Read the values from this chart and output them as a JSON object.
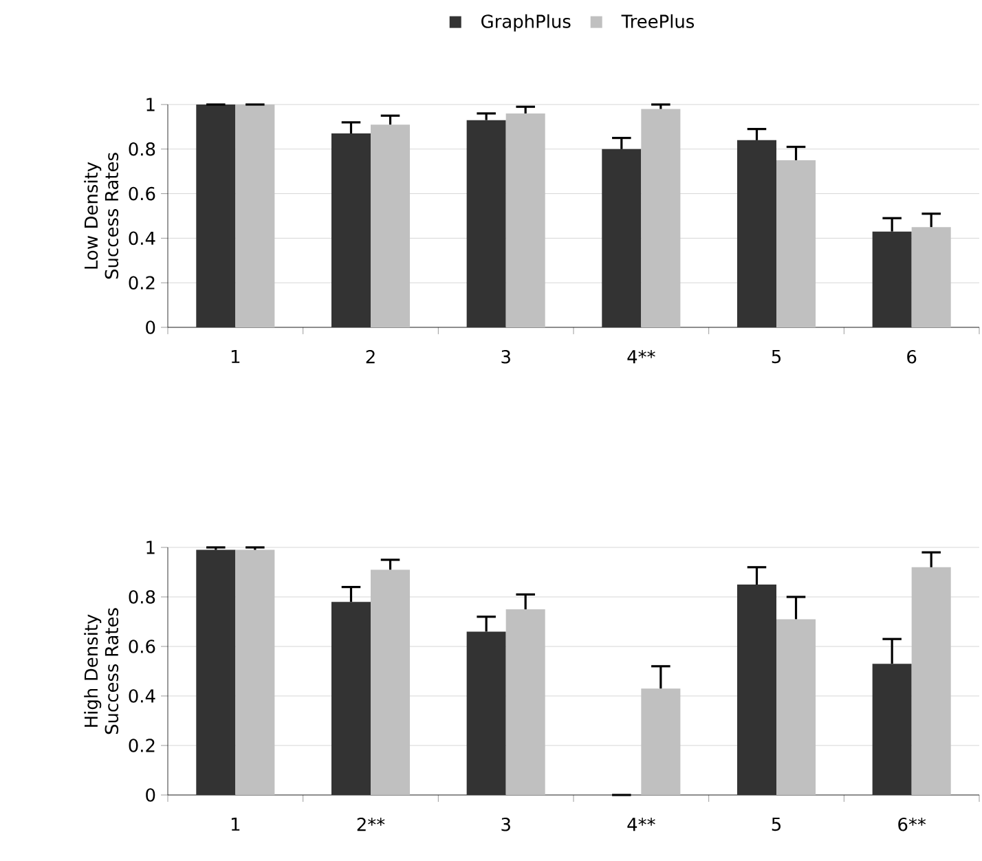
{
  "chart_data": [
    {
      "type": "bar",
      "ylabel": "Low Density Success Rates",
      "categories": [
        "1",
        "2",
        "3",
        "4**",
        "5",
        "6"
      ],
      "ylim": [
        0,
        1
      ],
      "yticks": [
        0,
        0.2,
        0.4,
        0.6,
        0.8,
        1
      ],
      "grid": "y",
      "legend": "top",
      "series": [
        {
          "name": "GraphPlus",
          "color": "#333333",
          "values": [
            1.0,
            0.87,
            0.93,
            0.8,
            0.84,
            0.43
          ],
          "errors": [
            [
              1.0,
              1.0
            ],
            [
              0.87,
              0.92
            ],
            [
              0.93,
              0.96
            ],
            [
              0.8,
              0.85
            ],
            [
              0.84,
              0.89
            ],
            [
              0.43,
              0.49
            ]
          ]
        },
        {
          "name": "TreePlus",
          "color": "#c0c0c0",
          "values": [
            1.0,
            0.91,
            0.96,
            0.98,
            0.75,
            0.45
          ],
          "errors": [
            [
              1.0,
              1.0
            ],
            [
              0.91,
              0.95
            ],
            [
              0.96,
              0.99
            ],
            [
              0.98,
              1.0
            ],
            [
              0.75,
              0.81
            ],
            [
              0.45,
              0.51
            ]
          ]
        }
      ]
    },
    {
      "type": "bar",
      "ylabel": "High Density Success Rates",
      "categories": [
        "1",
        "2**",
        "3",
        "4**",
        "5",
        "6**"
      ],
      "ylim": [
        0,
        1
      ],
      "yticks": [
        0,
        0.2,
        0.4,
        0.6,
        0.8,
        1
      ],
      "grid": "y",
      "series": [
        {
          "color": "#333333",
          "values": [
            0.99,
            0.78,
            0.66,
            0.0,
            0.85,
            0.53
          ],
          "errors": [
            [
              0.99,
              1.0
            ],
            [
              0.78,
              0.84
            ],
            [
              0.66,
              0.72
            ],
            [
              0.0,
              0.0
            ],
            [
              0.85,
              0.92
            ],
            [
              0.53,
              0.63
            ]
          ]
        },
        {
          "color": "#c0c0c0",
          "values": [
            0.99,
            0.91,
            0.75,
            0.43,
            0.71,
            0.92
          ],
          "errors": [
            [
              0.99,
              1.0
            ],
            [
              0.91,
              0.95
            ],
            [
              0.75,
              0.81
            ],
            [
              0.43,
              0.52
            ],
            [
              0.71,
              0.8
            ],
            [
              0.92,
              0.98
            ]
          ]
        }
      ]
    }
  ]
}
